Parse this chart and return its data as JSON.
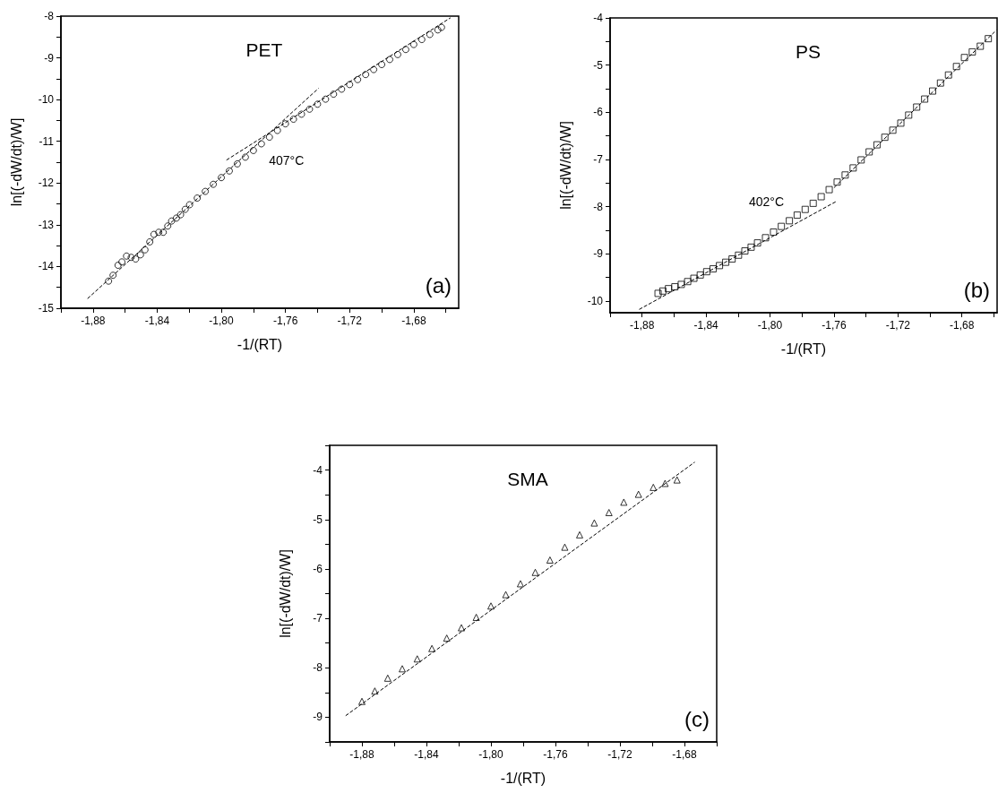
{
  "chart_data": [
    {
      "type": "scatter",
      "title": "PET",
      "xlabel": "-1/(RT)",
      "ylabel": "ln[(-dW/dt)/W]",
      "annotations": [
        "(a)",
        "407°C"
      ],
      "xlim": [
        -1.9,
        -1.652
      ],
      "ylim": [
        -15,
        -8
      ],
      "xticks": [
        {
          "value": -1.9,
          "label": null
        },
        {
          "value": -1.88,
          "label": "-1,88"
        },
        {
          "value": -1.86,
          "label": null
        },
        {
          "value": -1.84,
          "label": "-1,84"
        },
        {
          "value": -1.82,
          "label": null
        },
        {
          "value": -1.8,
          "label": "-1,80"
        },
        {
          "value": -1.78,
          "label": null
        },
        {
          "value": -1.76,
          "label": "-1,76"
        },
        {
          "value": -1.74,
          "label": null
        },
        {
          "value": -1.72,
          "label": "-1,72"
        },
        {
          "value": -1.7,
          "label": null
        },
        {
          "value": -1.68,
          "label": "-1,68"
        },
        {
          "value": -1.66,
          "label": null
        }
      ],
      "yticks": [
        -15,
        {
          "value": -14.5,
          "label": null
        },
        -14,
        {
          "value": -13.5,
          "label": null
        },
        -13,
        {
          "value": -12.5,
          "label": null
        },
        -12,
        {
          "value": -11.5,
          "label": null
        },
        -11,
        {
          "value": -10.5,
          "label": null
        },
        -10,
        {
          "value": -9.5,
          "label": null
        },
        -9,
        {
          "value": -8.5,
          "label": null
        },
        -8
      ],
      "grid": false,
      "series": [
        {
          "marker": "circle",
          "color": "#000000",
          "x": [
            -1.8703,
            -1.8675,
            -1.8644,
            -1.862,
            -1.8591,
            -1.8562,
            -1.8534,
            -1.8504,
            -1.8476,
            -1.8446,
            -1.842,
            -1.839,
            -1.8362,
            -1.8334,
            -1.831,
            -1.828,
            -1.8254,
            -1.8225,
            -1.8198,
            -1.815,
            -1.81,
            -1.805,
            -1.8,
            -1.795,
            -1.79,
            -1.785,
            -1.78,
            -1.775,
            -1.77,
            -1.765,
            -1.76,
            -1.755,
            -1.75,
            -1.745,
            -1.74,
            -1.735,
            -1.73,
            -1.725,
            -1.72,
            -1.715,
            -1.71,
            -1.705,
            -1.7,
            -1.695,
            -1.69,
            -1.685,
            -1.68,
            -1.675,
            -1.67,
            -1.665,
            -1.6627
          ],
          "values": [
            -14.35,
            -14.21,
            -13.97,
            -13.89,
            -13.75,
            -13.78,
            -13.82,
            -13.72,
            -13.6,
            -13.41,
            -13.23,
            -13.18,
            -13.18,
            -13.03,
            -12.91,
            -12.84,
            -12.76,
            -12.63,
            -12.52,
            -12.36,
            -12.2,
            -12.03,
            -11.87,
            -11.71,
            -11.54,
            -11.38,
            -11.22,
            -11.06,
            -10.9,
            -10.74,
            -10.58,
            -10.47,
            -10.35,
            -10.23,
            -10.11,
            -9.99,
            -9.87,
            -9.75,
            -9.64,
            -9.52,
            -9.4,
            -9.28,
            -9.16,
            -9.04,
            -8.92,
            -8.8,
            -8.68,
            -8.56,
            -8.44,
            -8.33,
            -8.27
          ]
        },
        {
          "type": "line",
          "marker": "none",
          "line_style": "dashed",
          "color": "#000000",
          "x": [
            -1.8834,
            -1.7394
          ],
          "values": [
            -14.77,
            -9.73
          ]
        },
        {
          "type": "line",
          "marker": "none",
          "line_style": "dashed",
          "color": "#000000",
          "x": [
            -1.7968,
            -1.6571
          ],
          "values": [
            -11.45,
            -8.04
          ]
        }
      ]
    },
    {
      "type": "scatter",
      "title": "PS",
      "xlabel": "-1/(RT)",
      "ylabel": "ln[(-dW/dt)/W]",
      "annotations": [
        "(b)",
        "402°C"
      ],
      "xlim": [
        -1.9,
        -1.658
      ],
      "ylim": [
        -10.25,
        -4
      ],
      "xticks": [
        {
          "value": -1.9,
          "label": null
        },
        {
          "value": -1.88,
          "label": "-1,88"
        },
        {
          "value": -1.86,
          "label": null
        },
        {
          "value": -1.84,
          "label": "-1,84"
        },
        {
          "value": -1.82,
          "label": null
        },
        {
          "value": -1.8,
          "label": "-1,80"
        },
        {
          "value": -1.78,
          "label": null
        },
        {
          "value": -1.76,
          "label": "-1,76"
        },
        {
          "value": -1.74,
          "label": null
        },
        {
          "value": -1.72,
          "label": "-1,72"
        },
        {
          "value": -1.7,
          "label": null
        },
        {
          "value": -1.68,
          "label": "-1,68"
        },
        {
          "value": -1.66,
          "label": null
        }
      ],
      "yticks": [
        -10,
        {
          "value": -9.5,
          "label": null
        },
        -9,
        {
          "value": -8.5,
          "label": null
        },
        -8,
        {
          "value": -7.5,
          "label": null
        },
        -7,
        {
          "value": -6.5,
          "label": null
        },
        -6,
        {
          "value": -5.5,
          "label": null
        },
        -5,
        {
          "value": -4.5,
          "label": null
        },
        -4
      ],
      "grid": false,
      "series": [
        {
          "marker": "square",
          "color": "#000000",
          "x": [
            -1.87,
            -1.867,
            -1.8635,
            -1.8595,
            -1.8555,
            -1.8515,
            -1.8476,
            -1.8436,
            -1.8396,
            -1.8356,
            -1.8316,
            -1.8277,
            -1.8237,
            -1.8197,
            -1.8157,
            -1.8118,
            -1.8078,
            -1.8028,
            -1.7978,
            -1.7929,
            -1.7879,
            -1.783,
            -1.778,
            -1.773,
            -1.768,
            -1.763,
            -1.758,
            -1.753,
            -1.748,
            -1.743,
            -1.738,
            -1.7331,
            -1.7282,
            -1.7232,
            -1.7182,
            -1.7133,
            -1.7083,
            -1.7033,
            -1.6983,
            -1.6934,
            -1.6884,
            -1.6834,
            -1.6784,
            -1.6735,
            -1.6685,
            -1.6635
          ],
          "values": [
            -9.84,
            -9.79,
            -9.74,
            -9.7,
            -9.65,
            -9.59,
            -9.52,
            -9.45,
            -9.38,
            -9.32,
            -9.25,
            -9.18,
            -9.11,
            -9.03,
            -8.94,
            -8.86,
            -8.77,
            -8.66,
            -8.54,
            -8.42,
            -8.3,
            -8.18,
            -8.06,
            -7.93,
            -7.79,
            -7.64,
            -7.48,
            -7.33,
            -7.18,
            -7.01,
            -6.84,
            -6.69,
            -6.53,
            -6.38,
            -6.23,
            -6.06,
            -5.89,
            -5.72,
            -5.55,
            -5.38,
            -5.21,
            -5.03,
            -4.84,
            -4.72,
            -4.6,
            -4.44
          ]
        },
        {
          "type": "line",
          "marker": "none",
          "line_style": "dashed",
          "color": "#000000",
          "x": [
            -1.8818,
            -1.758
          ],
          "values": [
            -10.18,
            -7.88
          ]
        },
        {
          "type": "line",
          "marker": "none",
          "line_style": "dashed",
          "color": "#000000",
          "x": [
            -1.76,
            -1.6585
          ],
          "values": [
            -7.6,
            -4.26
          ]
        }
      ]
    },
    {
      "type": "scatter",
      "title": "SMA",
      "xlabel": "-1/(RT)",
      "ylabel": "ln[(-dW/dt)/W]",
      "annotations": [
        "(c)"
      ],
      "xlim": [
        -1.9,
        -1.66
      ],
      "ylim": [
        -9.5,
        -3.5
      ],
      "xticks": [
        {
          "value": -1.9,
          "label": null
        },
        {
          "value": -1.88,
          "label": "-1,88"
        },
        {
          "value": -1.86,
          "label": null
        },
        {
          "value": -1.84,
          "label": "-1,84"
        },
        {
          "value": -1.82,
          "label": null
        },
        {
          "value": -1.8,
          "label": "-1,80"
        },
        {
          "value": -1.78,
          "label": null
        },
        {
          "value": -1.76,
          "label": "-1,76"
        },
        {
          "value": -1.74,
          "label": null
        },
        {
          "value": -1.72,
          "label": "-1,72"
        },
        {
          "value": -1.7,
          "label": null
        },
        {
          "value": -1.68,
          "label": "-1,68"
        },
        {
          "value": -1.66,
          "label": null
        }
      ],
      "yticks": [
        {
          "value": -9.5,
          "label": null
        },
        -9,
        {
          "value": -8.5,
          "label": null
        },
        -8,
        {
          "value": -7.5,
          "label": null
        },
        -7,
        {
          "value": -6.5,
          "label": null
        },
        -6,
        {
          "value": -5.5,
          "label": null
        },
        -5,
        {
          "value": -4.5,
          "label": null
        },
        -4,
        {
          "value": -3.5,
          "label": null
        }
      ],
      "grid": false,
      "series": [
        {
          "marker": "triangle",
          "color": "#000000",
          "x": [
            -1.88,
            -1.872,
            -1.864,
            -1.855,
            -1.8457,
            -1.8366,
            -1.8274,
            -1.8183,
            -1.8091,
            -1.8,
            -1.7908,
            -1.7817,
            -1.7725,
            -1.7634,
            -1.7542,
            -1.745,
            -1.7359,
            -1.7268,
            -1.7176,
            -1.7085,
            -1.6993,
            -1.692,
            -1.6846
          ],
          "values": [
            -8.68,
            -8.47,
            -8.21,
            -8.02,
            -7.82,
            -7.61,
            -7.4,
            -7.19,
            -6.98,
            -6.75,
            -6.52,
            -6.3,
            -6.07,
            -5.82,
            -5.56,
            -5.31,
            -5.07,
            -4.86,
            -4.65,
            -4.49,
            -4.35,
            -4.27,
            -4.2
          ]
        },
        {
          "type": "line",
          "marker": "none",
          "line_style": "dashed",
          "color": "#000000",
          "x": [
            -1.8901,
            -1.6736
          ],
          "values": [
            -8.97,
            -3.84
          ]
        }
      ]
    }
  ]
}
